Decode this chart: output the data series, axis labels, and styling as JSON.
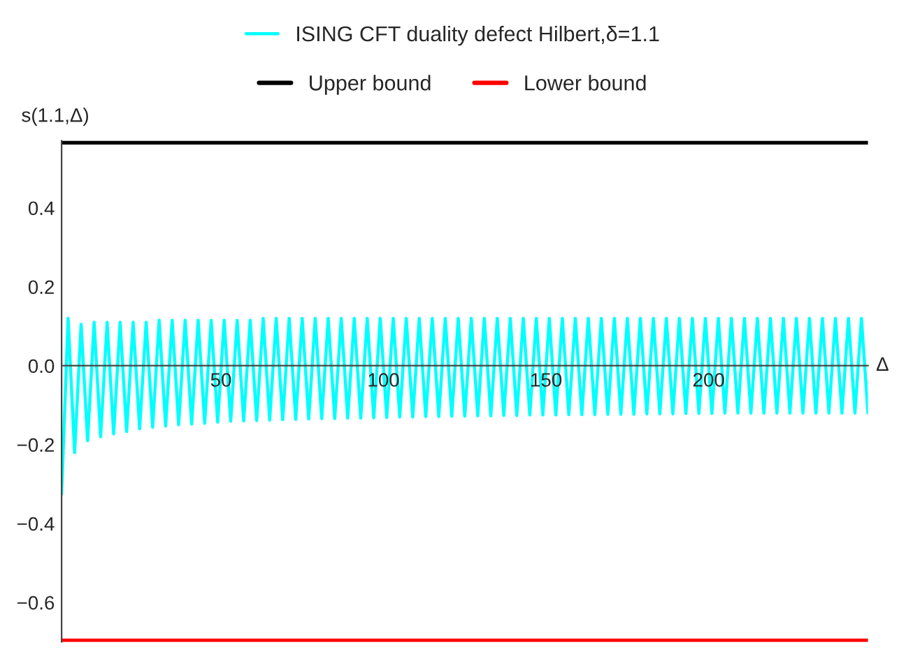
{
  "chart_data": {
    "type": "line",
    "xlabel": "Δ",
    "ylabel": "s(1.1,Δ)",
    "xlim": [
      1,
      249
    ],
    "ylim": [
      -0.7,
      0.57
    ],
    "xticks": [
      50,
      100,
      150,
      200
    ],
    "yticks": [
      {
        "value": -0.6,
        "label": "−0.6"
      },
      {
        "value": -0.4,
        "label": "−0.4"
      },
      {
        "value": -0.2,
        "label": "−0.2"
      },
      {
        "value": 0,
        "label": "0.0"
      },
      {
        "value": 0.2,
        "label": "0.2"
      },
      {
        "value": 0.4,
        "label": "0.4"
      }
    ],
    "legend": "top",
    "grid": false,
    "series": [
      {
        "name": "ISING CFT duality defect Hilbert,δ=1.1",
        "color": "#00ffff",
        "x": [
          1,
          3,
          5,
          7,
          9,
          11,
          13,
          15,
          17,
          19,
          21,
          23,
          25,
          27,
          29,
          31,
          33,
          35,
          37,
          39,
          41,
          43,
          45,
          47,
          49,
          51,
          53,
          55,
          57,
          59,
          61,
          63,
          65,
          67,
          69,
          71,
          73,
          75,
          77,
          79,
          81,
          83,
          85,
          87,
          89,
          91,
          93,
          95,
          97,
          99,
          101,
          103,
          105,
          107,
          109,
          111,
          113,
          115,
          117,
          119,
          121,
          123,
          125,
          127,
          129,
          131,
          133,
          135,
          137,
          139,
          141,
          143,
          145,
          147,
          149,
          151,
          153,
          155,
          157,
          159,
          161,
          163,
          165,
          167,
          169,
          171,
          173,
          175,
          177,
          179,
          181,
          183,
          185,
          187,
          189,
          191,
          193,
          195,
          197,
          199,
          201,
          203,
          205,
          207,
          209,
          211,
          213,
          215,
          217,
          219,
          221,
          223,
          225,
          227,
          229,
          231,
          233,
          235,
          237,
          239,
          241,
          243,
          245,
          247,
          249
        ],
        "values": [
          -0.325,
          0.12,
          -0.22,
          0.105,
          -0.19,
          0.11,
          -0.18,
          0.11,
          -0.173,
          0.11,
          -0.167,
          0.11,
          -0.16,
          0.11,
          -0.156,
          0.115,
          -0.153,
          0.115,
          -0.15,
          0.115,
          -0.148,
          0.115,
          -0.146,
          0.115,
          -0.143,
          0.115,
          -0.141,
          0.115,
          -0.14,
          0.115,
          -0.139,
          0.12,
          -0.138,
          0.12,
          -0.137,
          0.12,
          -0.136,
          0.12,
          -0.135,
          0.12,
          -0.134,
          0.12,
          -0.134,
          0.12,
          -0.133,
          0.12,
          -0.133,
          0.12,
          -0.132,
          0.12,
          -0.131,
          0.12,
          -0.13,
          0.12,
          -0.13,
          0.12,
          -0.129,
          0.12,
          -0.129,
          0.12,
          -0.128,
          0.12,
          -0.128,
          0.12,
          -0.127,
          0.12,
          -0.127,
          0.12,
          -0.126,
          0.12,
          -0.126,
          0.12,
          -0.125,
          0.12,
          -0.125,
          0.12,
          -0.125,
          0.12,
          -0.124,
          0.12,
          -0.124,
          0.12,
          -0.124,
          0.12,
          -0.123,
          0.12,
          -0.123,
          0.12,
          -0.123,
          0.12,
          -0.122,
          0.12,
          -0.122,
          0.12,
          -0.122,
          0.12,
          -0.121,
          0.12,
          -0.121,
          0.12,
          -0.121,
          0.12,
          -0.12,
          0.12,
          -0.12,
          0.12,
          -0.12,
          0.12,
          -0.12,
          0.12,
          -0.12,
          0.12,
          -0.12,
          0.12,
          -0.12,
          0.12,
          -0.12,
          0.12,
          -0.12,
          0.12,
          -0.12,
          0.12,
          -0.12,
          0.12,
          -0.12
        ]
      },
      {
        "name": "Upper bound",
        "color": "#000000",
        "x": [
          1,
          249
        ],
        "values": [
          0.566,
          0.566
        ]
      },
      {
        "name": "Lower bound",
        "color": "#ff0000",
        "x": [
          1,
          249
        ],
        "values": [
          -0.697,
          -0.697
        ]
      }
    ]
  }
}
